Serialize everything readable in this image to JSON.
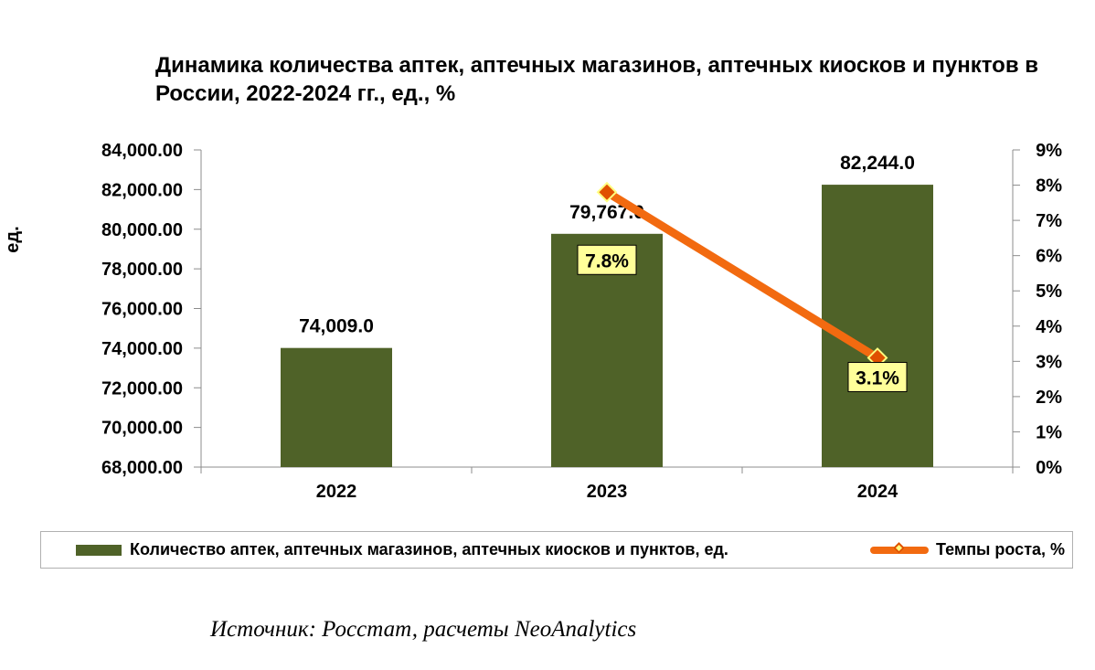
{
  "chart_data": {
    "type": "bar+line",
    "title": "Динамика количества аптек, аптечных магазинов, аптечных киосков и пунктов в России, 2022-2024 гг., ед., %",
    "categories": [
      "2022",
      "2023",
      "2024"
    ],
    "series": [
      {
        "name": "Количество аптек, аптечных магазинов, аптечных киосков и пунктов, ед.",
        "type": "bar",
        "axis": "left",
        "values": [
          74009.0,
          79767.0,
          82244.0
        ],
        "data_labels": [
          "74,009.0",
          "79,767.0",
          "82,244.0"
        ],
        "color": "#4f6228"
      },
      {
        "name": "Темпы роста, %",
        "type": "line",
        "axis": "right",
        "values": [
          null,
          7.8,
          3.1
        ],
        "data_labels": [
          "",
          "7.8%",
          "3.1%"
        ],
        "color": "#f26a10",
        "marker_color": "#e05000",
        "label_bg": "#ffff99"
      }
    ],
    "y_left": {
      "label": "ед.",
      "min": 68000,
      "max": 84000,
      "step": 2000,
      "tick_labels": [
        "68,000.00",
        "70,000.00",
        "72,000.00",
        "74,000.00",
        "76,000.00",
        "78,000.00",
        "80,000.00",
        "82,000.00",
        "84,000.00"
      ]
    },
    "y_right": {
      "min": 0,
      "max": 9,
      "step": 1,
      "tick_labels": [
        "0%",
        "1%",
        "2%",
        "3%",
        "4%",
        "5%",
        "6%",
        "7%",
        "8%",
        "9%"
      ]
    },
    "legend_position": "bottom"
  },
  "source_text": "Источник: Росстат, расчеты NeoAnalytics"
}
